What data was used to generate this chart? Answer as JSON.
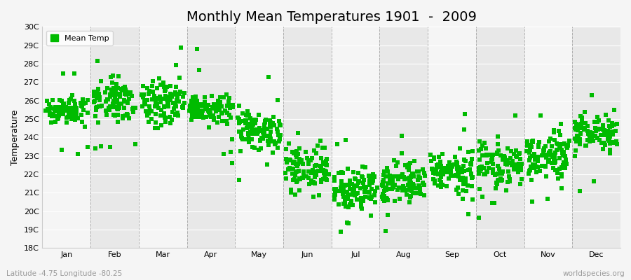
{
  "title": "Monthly Mean Temperatures 1901  -  2009",
  "ylabel": "Temperature",
  "xlabel_labels": [
    "Jan",
    "Feb",
    "Mar",
    "Apr",
    "May",
    "Jun",
    "Jul",
    "Aug",
    "Sep",
    "Oct",
    "Nov",
    "Dec"
  ],
  "subtitle": "Latitude -4.75 Longitude -80.25",
  "watermark": "worldspecies.org",
  "legend_label": "Mean Temp",
  "dot_color": "#00bb00",
  "bg_light": "#f5f5f5",
  "bg_dark": "#e8e8e8",
  "grid_color": "#ffffff",
  "dashed_color": "#888888",
  "ylim_min": 18,
  "ylim_max": 30,
  "ytick_labels": [
    "18C",
    "19C",
    "20C",
    "21C",
    "22C",
    "23C",
    "24C",
    "25C",
    "26C",
    "27C",
    "28C",
    "29C",
    "30C"
  ],
  "ytick_values": [
    18,
    19,
    20,
    21,
    22,
    23,
    24,
    25,
    26,
    27,
    28,
    29,
    30
  ],
  "monthly_means": [
    25.5,
    26.0,
    25.9,
    25.5,
    24.4,
    22.2,
    21.3,
    21.5,
    22.1,
    22.5,
    23.1,
    24.2
  ],
  "monthly_stds": [
    0.35,
    0.55,
    0.55,
    0.4,
    0.55,
    0.65,
    0.55,
    0.55,
    0.5,
    0.55,
    0.55,
    0.5
  ],
  "n_years": 109,
  "title_fontsize": 14,
  "axis_label_fontsize": 9,
  "tick_fontsize": 8,
  "marker_size": 4,
  "dpi": 100,
  "fig_width": 9.0,
  "fig_height": 4.0
}
